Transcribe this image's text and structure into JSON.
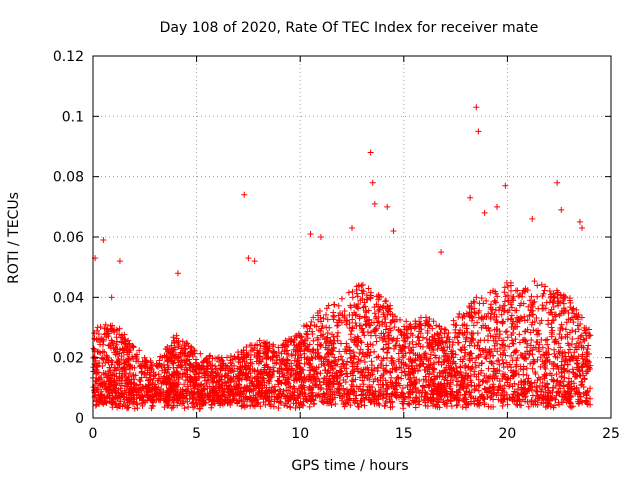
{
  "chart_data": {
    "type": "scatter",
    "title": "Day 108 of 2020, Rate Of TEC Index for receiver mate",
    "xlabel": "GPS time / hours",
    "ylabel": "ROTI / TECUs",
    "xlim": [
      0,
      25
    ],
    "ylim": [
      0,
      0.12
    ],
    "x_ticks": [
      0,
      5,
      10,
      15,
      20,
      25
    ],
    "x_tick_labels": [
      "0",
      "5",
      "10",
      "15",
      "20",
      "25"
    ],
    "y_ticks": [
      0,
      0.02,
      0.04,
      0.06,
      0.08,
      0.1,
      0.12
    ],
    "y_tick_labels": [
      "0",
      "0.02",
      "0.04",
      "0.06",
      "0.08",
      "0.1",
      "0.12"
    ],
    "grid": true,
    "marker": "plus",
    "series": [
      {
        "name": "ROTI",
        "color": "#ff0000",
        "envelope": {
          "hours": [
            0,
            1,
            2,
            3,
            4,
            5,
            6,
            7,
            8,
            9,
            10,
            11,
            12,
            13,
            14,
            15,
            16,
            17,
            18,
            19,
            20,
            21,
            22,
            23,
            24
          ],
          "typical_max": [
            0.03,
            0.032,
            0.024,
            0.018,
            0.028,
            0.022,
            0.02,
            0.022,
            0.026,
            0.024,
            0.03,
            0.036,
            0.04,
            0.045,
            0.04,
            0.032,
            0.034,
            0.03,
            0.038,
            0.042,
            0.045,
            0.046,
            0.044,
            0.04,
            0.03
          ]
        },
        "points": [
          [
            0.1,
            0.053
          ],
          [
            0.5,
            0.059
          ],
          [
            0.9,
            0.04
          ],
          [
            1.3,
            0.052
          ],
          [
            4.1,
            0.048
          ],
          [
            7.3,
            0.074
          ],
          [
            7.5,
            0.053
          ],
          [
            7.8,
            0.052
          ],
          [
            10.5,
            0.061
          ],
          [
            11.0,
            0.06
          ],
          [
            12.5,
            0.063
          ],
          [
            13.4,
            0.088
          ],
          [
            13.5,
            0.078
          ],
          [
            13.6,
            0.071
          ],
          [
            14.2,
            0.07
          ],
          [
            14.5,
            0.062
          ],
          [
            16.8,
            0.055
          ],
          [
            18.2,
            0.073
          ],
          [
            18.5,
            0.103
          ],
          [
            18.6,
            0.095
          ],
          [
            18.9,
            0.068
          ],
          [
            19.5,
            0.07
          ],
          [
            19.9,
            0.077
          ],
          [
            21.2,
            0.066
          ],
          [
            22.4,
            0.078
          ],
          [
            22.6,
            0.069
          ],
          [
            23.5,
            0.065
          ],
          [
            23.6,
            0.063
          ]
        ]
      }
    ]
  }
}
